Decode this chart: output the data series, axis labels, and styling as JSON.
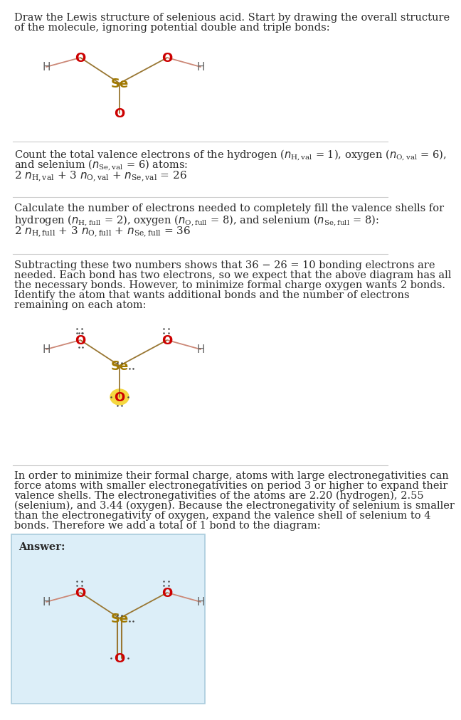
{
  "bg_color": "#ffffff",
  "text_color": "#2a2a2a",
  "atom_O_color": "#cc0000",
  "atom_Se_color": "#a07800",
  "atom_H_color": "#666666",
  "bond_color_light": "#cc8877",
  "bond_color_dark": "#997733",
  "lone_pair_color": "#444444",
  "highlight_color": "#f5d840",
  "divider_color": "#cccccc",
  "answer_box_color": "#dceef8",
  "answer_box_border": "#aaccdd",
  "section1_line1": "Draw the Lewis structure of selenious acid. Start by drawing the overall structure",
  "section1_line2": "of the molecule, ignoring potential double and triple bonds:",
  "section4_lines": [
    "Subtracting these two numbers shows that 36 − 26 = 10 bonding electrons are",
    "needed. Each bond has two electrons, so we expect that the above diagram has all",
    "the necessary bonds. However, to minimize formal charge oxygen wants 2 bonds.",
    "Identify the atom that wants additional bonds and the number of electrons",
    "remaining on each atom:"
  ],
  "section5_lines": [
    "In order to minimize their formal charge, atoms with large electronegativities can",
    "force atoms with smaller electronegativities on period 3 or higher to expand their",
    "valence shells. The electronegativities of the atoms are 2.20 (hydrogen), 2.55",
    "(selenium), and 3.44 (oxygen). Because the electronegativity of selenium is smaller",
    "than the electronegativity of oxygen, expand the valence shell of selenium to 4",
    "bonds. Therefore we add a total of 1 bond to the diagram:"
  ]
}
